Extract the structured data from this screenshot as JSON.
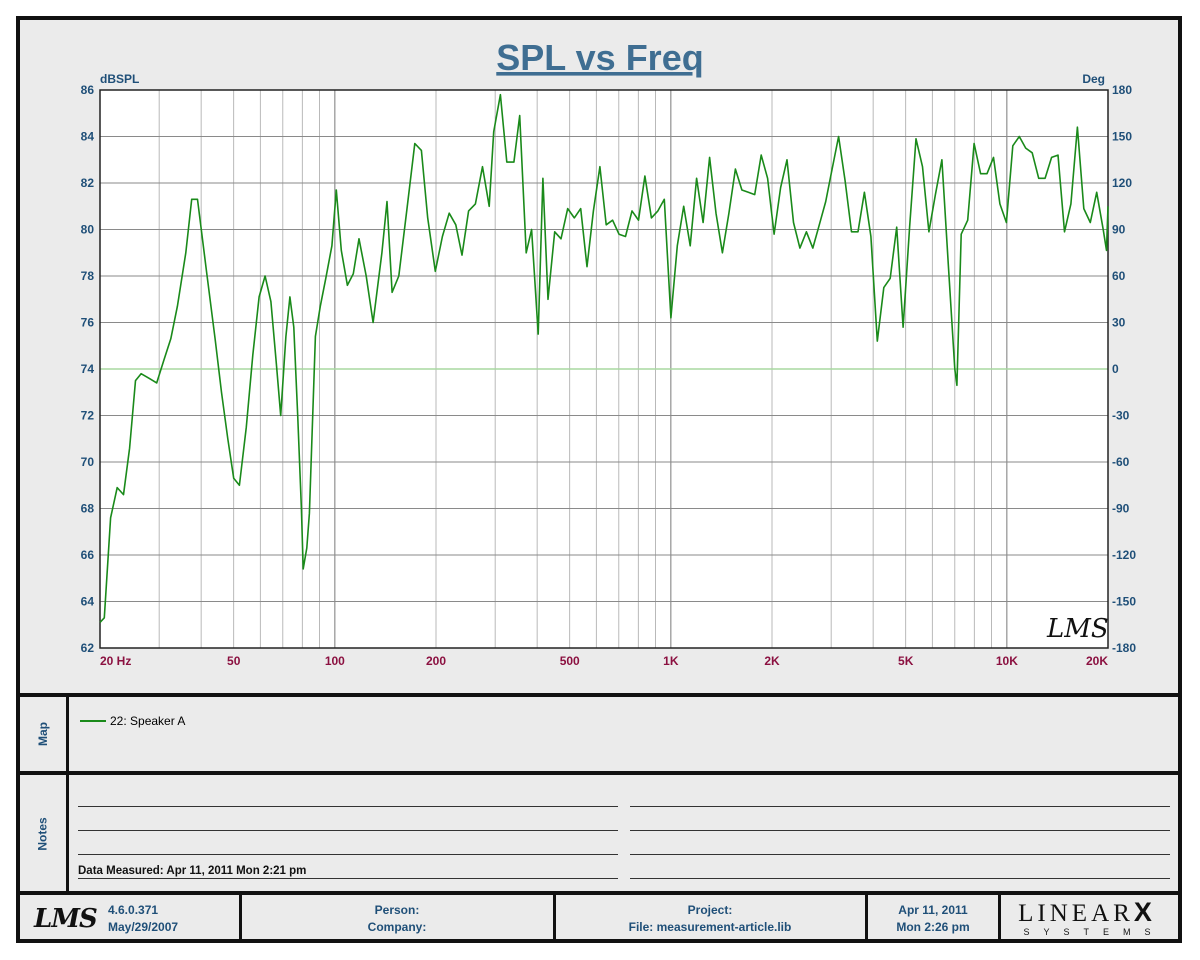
{
  "chart_data": {
    "type": "line",
    "title": "SPL vs Freq",
    "y_left_label": "dBSPL",
    "y_right_label": "Deg",
    "x_scale": "log",
    "xlim": [
      20,
      20000
    ],
    "ylim": [
      62,
      86
    ],
    "y_right_lim": [
      -180,
      180
    ],
    "y_ticks": [
      62,
      64,
      66,
      68,
      70,
      72,
      74,
      76,
      78,
      80,
      82,
      84,
      86
    ],
    "y_right_ticks": [
      -180,
      -150,
      -120,
      -90,
      -60,
      -30,
      0,
      30,
      60,
      90,
      120,
      150,
      180
    ],
    "x_tick_labels": [
      {
        "f": 20,
        "label": "20  Hz"
      },
      {
        "f": 50,
        "label": "50"
      },
      {
        "f": 100,
        "label": "100"
      },
      {
        "f": 200,
        "label": "200"
      },
      {
        "f": 500,
        "label": "500"
      },
      {
        "f": 1000,
        "label": "1K"
      },
      {
        "f": 2000,
        "label": "2K"
      },
      {
        "f": 5000,
        "label": "5K"
      },
      {
        "f": 10000,
        "label": "10K"
      },
      {
        "f": 20000,
        "label": "20K"
      }
    ],
    "grid": true,
    "colors": {
      "series": "#1a8a1a",
      "zero_phase_line": "#a8d8a0",
      "axis_text": "#1f4f78",
      "freq_text": "#8b1040"
    },
    "series": [
      {
        "name": "22: Speaker A",
        "points": [
          [
            20,
            63.1
          ],
          [
            20.6,
            63.3
          ],
          [
            21.5,
            67.6
          ],
          [
            22.5,
            68.9
          ],
          [
            23.5,
            68.6
          ],
          [
            24.5,
            70.6
          ],
          [
            25.5,
            73.5
          ],
          [
            26.5,
            73.8
          ],
          [
            28,
            73.6
          ],
          [
            29.5,
            73.4
          ],
          [
            31,
            74.4
          ],
          [
            32.5,
            75.3
          ],
          [
            34,
            76.7
          ],
          [
            36,
            79.0
          ],
          [
            37.5,
            81.3
          ],
          [
            39,
            81.3
          ],
          [
            41.5,
            78.2
          ],
          [
            44,
            75.3
          ],
          [
            46,
            73.0
          ],
          [
            48,
            71.0
          ],
          [
            50,
            69.3
          ],
          [
            52,
            69.0
          ],
          [
            54.5,
            71.5
          ],
          [
            57,
            74.6
          ],
          [
            59.5,
            77.1
          ],
          [
            62,
            78.0
          ],
          [
            64.5,
            76.9
          ],
          [
            67,
            74.2
          ],
          [
            69,
            72.0
          ],
          [
            71.5,
            75.4
          ],
          [
            73.5,
            77.1
          ],
          [
            75.5,
            75.8
          ],
          [
            77.5,
            72.0
          ],
          [
            79.5,
            68.0
          ],
          [
            80.5,
            65.4
          ],
          [
            82.5,
            66.3
          ],
          [
            84,
            67.8
          ],
          [
            87.5,
            75.4
          ],
          [
            90.5,
            76.7
          ],
          [
            94,
            77.9
          ],
          [
            98,
            79.3
          ],
          [
            101,
            81.7
          ],
          [
            104.5,
            79.1
          ],
          [
            109,
            77.6
          ],
          [
            113.5,
            78.1
          ],
          [
            118,
            79.6
          ],
          [
            124,
            78.0
          ],
          [
            130,
            76.0
          ],
          [
            138,
            79.0
          ],
          [
            143,
            81.2
          ],
          [
            148,
            77.3
          ],
          [
            155,
            78.0
          ],
          [
            164,
            80.9
          ],
          [
            173,
            83.7
          ],
          [
            181,
            83.4
          ],
          [
            189,
            80.5
          ],
          [
            199,
            78.2
          ],
          [
            209,
            79.7
          ],
          [
            219,
            80.7
          ],
          [
            229,
            80.2
          ],
          [
            239,
            78.9
          ],
          [
            250,
            80.8
          ],
          [
            262,
            81.1
          ],
          [
            275,
            82.7
          ],
          [
            288,
            81.0
          ],
          [
            297,
            84.2
          ],
          [
            311,
            85.8
          ],
          [
            325,
            82.9
          ],
          [
            341,
            82.9
          ],
          [
            355,
            84.9
          ],
          [
            371,
            79.0
          ],
          [
            385,
            80.0
          ],
          [
            403,
            75.5
          ],
          [
            416,
            82.2
          ],
          [
            431,
            77.0
          ],
          [
            451,
            79.9
          ],
          [
            471,
            79.6
          ],
          [
            493,
            80.9
          ],
          [
            516,
            80.5
          ],
          [
            539,
            80.9
          ],
          [
            563,
            78.4
          ],
          [
            588,
            80.8
          ],
          [
            615,
            82.7
          ],
          [
            642,
            80.2
          ],
          [
            671,
            80.4
          ],
          [
            701,
            79.8
          ],
          [
            733,
            79.7
          ],
          [
            766,
            80.8
          ],
          [
            801,
            80.4
          ],
          [
            837,
            82.3
          ],
          [
            875,
            80.5
          ],
          [
            915,
            80.8
          ],
          [
            956,
            81.3
          ],
          [
            1000,
            76.2
          ],
          [
            1045,
            79.3
          ],
          [
            1092,
            81.0
          ],
          [
            1142,
            79.3
          ],
          [
            1193,
            82.2
          ],
          [
            1247,
            80.3
          ],
          [
            1304,
            83.1
          ],
          [
            1363,
            80.7
          ],
          [
            1424,
            79.0
          ],
          [
            1489,
            80.7
          ],
          [
            1556,
            82.6
          ],
          [
            1627,
            81.7
          ],
          [
            1700,
            81.6
          ],
          [
            1777,
            81.5
          ],
          [
            1857,
            83.2
          ],
          [
            1941,
            82.2
          ],
          [
            2029,
            79.8
          ],
          [
            2121,
            81.8
          ],
          [
            2216,
            83.0
          ],
          [
            2317,
            80.3
          ],
          [
            2421,
            79.2
          ],
          [
            2531,
            79.9
          ],
          [
            2645,
            79.2
          ],
          [
            2765,
            80.2
          ],
          [
            2890,
            81.2
          ],
          [
            3020,
            82.6
          ],
          [
            3157,
            84.0
          ],
          [
            3300,
            82.1
          ],
          [
            3449,
            79.9
          ],
          [
            3605,
            79.9
          ],
          [
            3768,
            81.6
          ],
          [
            3938,
            79.7
          ],
          [
            4116,
            75.2
          ],
          [
            4303,
            77.5
          ],
          [
            4497,
            77.9
          ],
          [
            4700,
            80.1
          ],
          [
            4913,
            75.8
          ],
          [
            5135,
            80.1
          ],
          [
            5367,
            83.9
          ],
          [
            5610,
            82.7
          ],
          [
            5863,
            79.9
          ],
          [
            6129,
            81.5
          ],
          [
            6406,
            83.0
          ],
          [
            6695,
            78.5
          ],
          [
            6998,
            74.0
          ],
          [
            7100,
            73.3
          ],
          [
            7314,
            79.8
          ],
          [
            7645,
            80.4
          ],
          [
            7991,
            83.7
          ],
          [
            8352,
            82.4
          ],
          [
            8730,
            82.4
          ],
          [
            9125,
            83.1
          ],
          [
            9537,
            81.1
          ],
          [
            9968,
            80.3
          ],
          [
            10419,
            83.6
          ],
          [
            10890,
            84.0
          ],
          [
            11382,
            83.5
          ],
          [
            11897,
            83.3
          ],
          [
            12435,
            82.2
          ],
          [
            12997,
            82.2
          ],
          [
            13585,
            83.1
          ],
          [
            14199,
            83.2
          ],
          [
            14841,
            79.9
          ],
          [
            15512,
            81.1
          ],
          [
            16213,
            84.4
          ],
          [
            16946,
            80.9
          ],
          [
            17712,
            80.3
          ],
          [
            18513,
            81.6
          ],
          [
            19350,
            80.0
          ],
          [
            19800,
            79.1
          ],
          [
            20000,
            81.0
          ]
        ]
      }
    ]
  },
  "map": {
    "side_label": "Map",
    "legend_label": "22: Speaker A"
  },
  "notes": {
    "side_label": "Notes",
    "measured": "Data Measured: Apr 11, 2011  Mon  2:21 pm"
  },
  "footer": {
    "logo_text": "LMS",
    "version": "4.6.0.371",
    "version_date": "May/29/2007",
    "person": "Person:",
    "company": "Company:",
    "project": "Project:",
    "file": "File: measurement-article.lib",
    "date": "Apr 11, 2011",
    "time": "Mon  2:26 pm",
    "brand_top": "LINEAR",
    "brand_x": "X",
    "brand_bottom": "SYSTEMS"
  },
  "watermark": "LMS"
}
